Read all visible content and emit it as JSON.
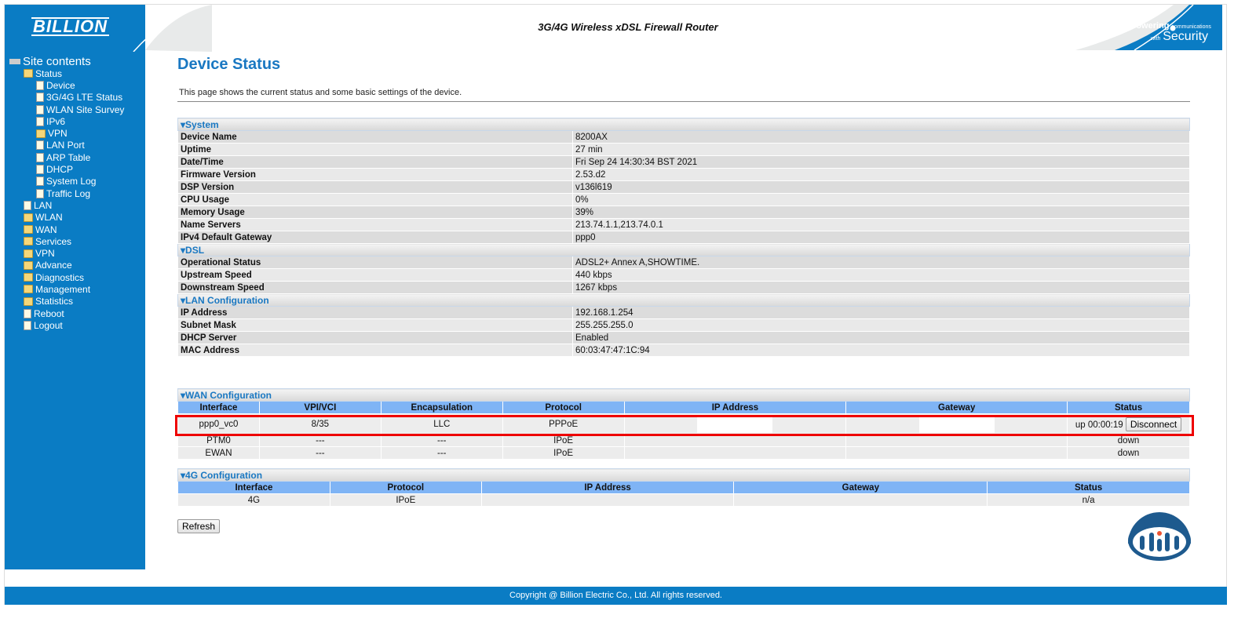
{
  "header": {
    "logo": "BILLION",
    "title": "3G/4G Wireless xDSL Firewall Router",
    "tagline_1": "Powering",
    "tagline_2": "communications",
    "tagline_3": "with",
    "tagline_4": "Security",
    "brand_color": "#0a7cc4"
  },
  "sidebar": {
    "root": "Site contents",
    "items": [
      {
        "label": "Status",
        "icon": "folder-open-icon",
        "level": 1
      },
      {
        "label": "Device",
        "icon": "page-icon",
        "level": 2
      },
      {
        "label": "3G/4G LTE Status",
        "icon": "page-icon",
        "level": 2
      },
      {
        "label": "WLAN Site Survey",
        "icon": "page-icon",
        "level": 2
      },
      {
        "label": "IPv6",
        "icon": "page-icon",
        "level": 2
      },
      {
        "label": "VPN",
        "icon": "folder-icon",
        "level": 2
      },
      {
        "label": "LAN Port",
        "icon": "page-icon",
        "level": 2
      },
      {
        "label": "ARP Table",
        "icon": "page-icon",
        "level": 2
      },
      {
        "label": "DHCP",
        "icon": "page-icon",
        "level": 2
      },
      {
        "label": "System Log",
        "icon": "page-icon",
        "level": 2
      },
      {
        "label": "Traffic Log",
        "icon": "page-icon",
        "level": 2
      },
      {
        "label": "LAN",
        "icon": "page-icon",
        "level": 1
      },
      {
        "label": "WLAN",
        "icon": "folder-icon",
        "level": 1
      },
      {
        "label": "WAN",
        "icon": "folder-icon",
        "level": 1
      },
      {
        "label": "Services",
        "icon": "folder-icon",
        "level": 1
      },
      {
        "label": "VPN",
        "icon": "folder-icon",
        "level": 1
      },
      {
        "label": "Advance",
        "icon": "folder-icon",
        "level": 1
      },
      {
        "label": "Diagnostics",
        "icon": "folder-icon",
        "level": 1
      },
      {
        "label": "Management",
        "icon": "folder-icon",
        "level": 1
      },
      {
        "label": "Statistics",
        "icon": "folder-icon",
        "level": 1
      },
      {
        "label": "Reboot",
        "icon": "page-icon",
        "level": 1
      },
      {
        "label": "Logout",
        "icon": "page-icon",
        "level": 1
      }
    ]
  },
  "page": {
    "title": "Device Status",
    "description": "This page shows the current status and some basic settings of the device."
  },
  "sections": [
    {
      "title": "System",
      "rows": [
        [
          "Device Name",
          "8200AX"
        ],
        [
          "Uptime",
          "27 min"
        ],
        [
          "Date/Time",
          "Fri Sep 24 14:30:34 BST 2021"
        ],
        [
          "Firmware Version",
          "2.53.d2"
        ],
        [
          "DSP Version",
          "v136l619"
        ],
        [
          "CPU Usage",
          "0%"
        ],
        [
          "Memory Usage",
          "39%"
        ],
        [
          "Name Servers",
          "213.74.1.1,213.74.0.1"
        ],
        [
          "IPv4 Default Gateway",
          "ppp0"
        ]
      ]
    },
    {
      "title": "DSL",
      "rows": [
        [
          "Operational Status",
          "ADSL2+ Annex A,SHOWTIME."
        ],
        [
          "Upstream Speed",
          "440 kbps"
        ],
        [
          "Downstream Speed",
          "1267 kbps"
        ]
      ]
    },
    {
      "title": "LAN Configuration",
      "rows": [
        [
          "IP Address",
          "192.168.1.254"
        ],
        [
          "Subnet Mask",
          "255.255.255.0"
        ],
        [
          "DHCP Server",
          "Enabled"
        ],
        [
          "MAC Address",
          "60:03:47:47:1C:94"
        ]
      ]
    }
  ],
  "wan": {
    "title": "WAN Configuration",
    "columns": [
      "Interface",
      "VPI/VCI",
      "Encapsulation",
      "Protocol",
      "IP Address",
      "Gateway",
      "Status"
    ],
    "rows": [
      [
        "ppp0_vc0",
        "8/35",
        "LLC",
        "PPPoE",
        "",
        "",
        "up 00:00:19"
      ],
      [
        "PTM0",
        "---",
        "---",
        "IPoE",
        "",
        "",
        "down"
      ],
      [
        "EWAN",
        "---",
        "---",
        "IPoE",
        "",
        "",
        "down"
      ]
    ],
    "disconnect_label": "Disconnect"
  },
  "g4": {
    "title": "4G Configuration",
    "columns": [
      "Interface",
      "Protocol",
      "IP Address",
      "Gateway",
      "Status"
    ],
    "rows": [
      [
        "4G",
        "IPoE",
        "",
        "",
        "n/a"
      ]
    ]
  },
  "refresh_label": "Refresh",
  "footer": "Copyright @ Billion Electric Co., Ltd. All rights reserved."
}
